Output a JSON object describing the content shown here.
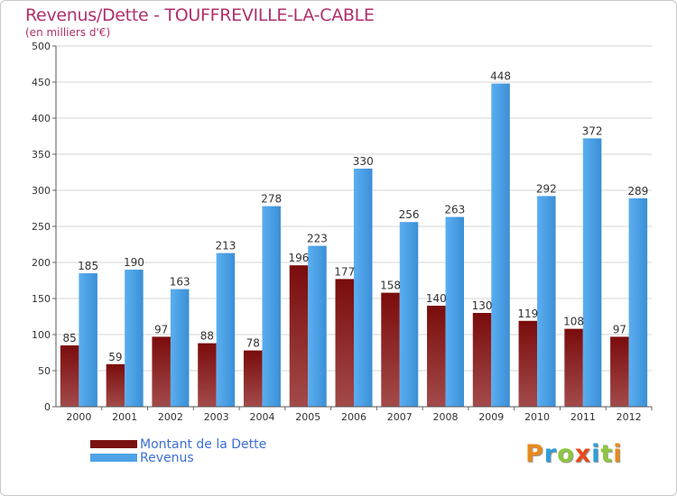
{
  "header": {
    "title": "Revenus/Dette - TOUFFREVILLE-LA-CABLE",
    "subtitle": "(en milliers d'€)"
  },
  "logo": {
    "letters": [
      "P",
      "r",
      "o",
      "x",
      "i",
      "t",
      "i"
    ],
    "colors": [
      "#e8891d",
      "#2f9fd8",
      "#8cc63f",
      "#e84a1d",
      "#2f9fd8",
      "#8cc63f",
      "#e8891d"
    ]
  },
  "legend": {
    "items": [
      {
        "label": "Montant de la Dette",
        "color": "#7a1212"
      },
      {
        "label": "Revenus",
        "color": "#4ea3e6"
      }
    ]
  },
  "chart_data": {
    "type": "bar",
    "title": "Revenus/Dette - TOUFFREVILLE-LA-CABLE",
    "ylabel": "(en milliers d'€)",
    "xlabel": "",
    "categories": [
      "2000",
      "2001",
      "2002",
      "2003",
      "2004",
      "2005",
      "2006",
      "2007",
      "2008",
      "2009",
      "2010",
      "2011",
      "2012"
    ],
    "series": [
      {
        "name": "Montant de la Dette",
        "color": "#7a1212",
        "values": [
          85,
          59,
          97,
          88,
          78,
          196,
          177,
          158,
          140,
          130,
          119,
          108,
          97
        ]
      },
      {
        "name": "Revenus",
        "color": "#4ea3e6",
        "values": [
          185,
          190,
          163,
          213,
          278,
          223,
          330,
          256,
          263,
          448,
          292,
          372,
          289
        ]
      }
    ],
    "ylim": [
      0,
      500
    ],
    "yticks": [
      0,
      50,
      100,
      150,
      200,
      250,
      300,
      350,
      400,
      450,
      500
    ],
    "grid": true,
    "legend": "bottom-left"
  }
}
